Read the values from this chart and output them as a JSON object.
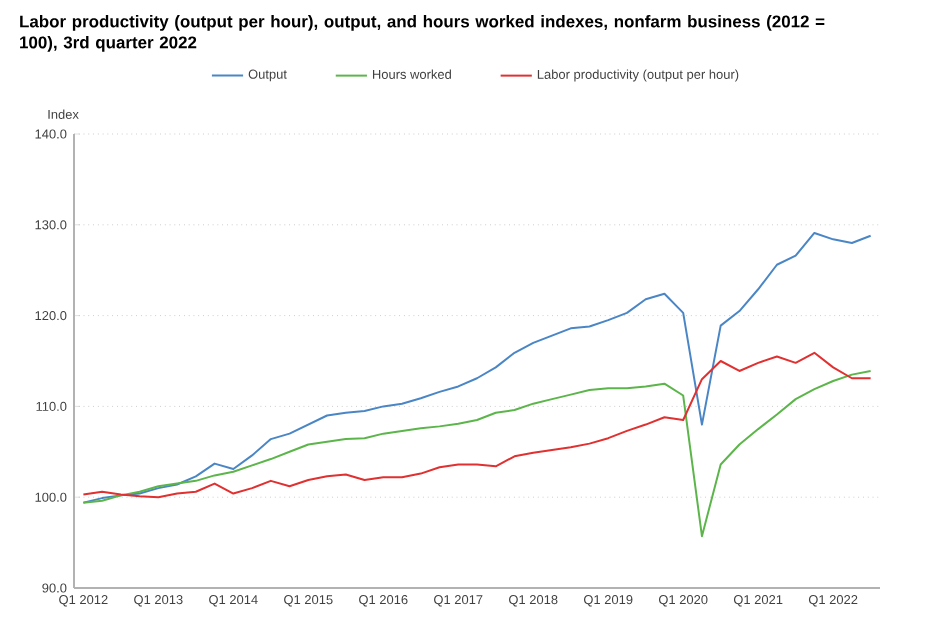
{
  "chart_data": {
    "type": "line",
    "title": "Labor productivity (output per hour), output, and hours worked indexes, nonfarm business (2012 = 100), 3rd quarter 2022",
    "ylabel": "Index",
    "categories": [
      "Q1 2012",
      null,
      null,
      null,
      "Q1 2013",
      null,
      null,
      null,
      "Q1 2014",
      null,
      null,
      null,
      "Q1 2015",
      null,
      null,
      null,
      "Q1 2016",
      null,
      null,
      null,
      "Q1 2017",
      null,
      null,
      null,
      "Q1 2018",
      null,
      null,
      null,
      "Q1 2019",
      null,
      null,
      null,
      "Q1 2020",
      null,
      null,
      null,
      "Q1 2021",
      null,
      null,
      null,
      "Q1 2022",
      null,
      null
    ],
    "series": [
      {
        "name": "Output",
        "color": "#4a86c5",
        "values": [
          99.4,
          99.9,
          100.2,
          100.4,
          101.0,
          101.4,
          102.3,
          103.7,
          103.1,
          104.6,
          106.4,
          107.0,
          108.0,
          109.0,
          109.3,
          109.5,
          110.0,
          110.3,
          110.9,
          111.6,
          112.2,
          113.1,
          114.3,
          115.9,
          117.0,
          117.8,
          118.6,
          118.8,
          119.5,
          120.3,
          121.8,
          122.4,
          120.3,
          108.0,
          118.9,
          120.5,
          122.9,
          125.6,
          126.6,
          129.1,
          128.4,
          128.0,
          128.8
        ]
      },
      {
        "name": "Hours worked",
        "color": "#5cb54a",
        "values": [
          99.4,
          99.6,
          100.2,
          100.6,
          101.2,
          101.5,
          101.8,
          102.4,
          102.8,
          103.5,
          104.2,
          105.0,
          105.8,
          106.1,
          106.4,
          106.5,
          107.0,
          107.3,
          107.6,
          107.8,
          108.1,
          108.5,
          109.3,
          109.6,
          110.3,
          110.8,
          111.3,
          111.8,
          112.0,
          112.0,
          112.2,
          112.5,
          111.2,
          95.7,
          103.6,
          105.8,
          107.5,
          109.1,
          110.8,
          111.9,
          112.8,
          113.5,
          113.9
        ]
      },
      {
        "name": "Labor productivity (output per hour)",
        "color": "#e03030",
        "values": [
          100.3,
          100.6,
          100.3,
          100.1,
          100.0,
          100.4,
          100.6,
          101.5,
          100.4,
          101.0,
          101.8,
          101.2,
          101.9,
          102.3,
          102.5,
          101.9,
          102.2,
          102.2,
          102.6,
          103.3,
          103.6,
          103.6,
          103.4,
          104.5,
          104.9,
          105.2,
          105.5,
          105.9,
          106.5,
          107.3,
          108.0,
          108.8,
          108.5,
          113.0,
          115.0,
          113.9,
          114.8,
          115.5,
          114.8,
          115.9,
          114.3,
          113.1,
          113.1
        ]
      }
    ],
    "ylim": [
      90,
      140
    ],
    "yticks": [
      {
        "value": 90,
        "label": "90.0"
      },
      {
        "value": 100,
        "label": "100.0"
      },
      {
        "value": 110,
        "label": "110.0"
      },
      {
        "value": 120,
        "label": "120.0"
      },
      {
        "value": 130,
        "label": "130.0"
      },
      {
        "value": 140,
        "label": "140.0"
      }
    ],
    "grid": "y",
    "legend": "top",
    "marker": "none",
    "line_style": "solid"
  }
}
